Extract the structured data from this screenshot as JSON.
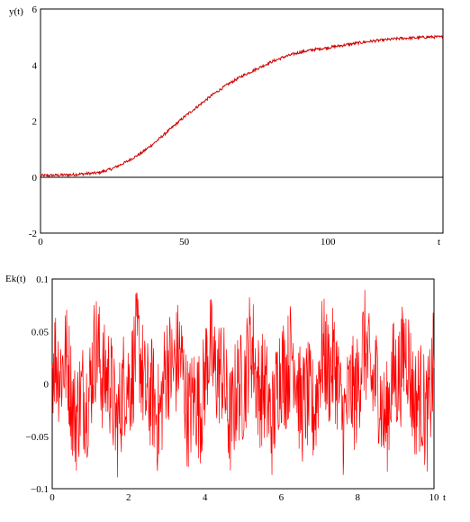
{
  "chart_data": [
    {
      "type": "line",
      "title": "",
      "ylabel": "y(t)",
      "xlabel": "t",
      "xlim": [
        0,
        140
      ],
      "ylim": [
        -2,
        6
      ],
      "xticks": [
        "0",
        "50",
        "100"
      ],
      "yticks": [
        "-2",
        "0",
        "2",
        "4",
        "6"
      ],
      "grid": false,
      "series": [
        {
          "color": "#cc0000",
          "x": [
            0,
            10,
            20,
            25,
            30,
            35,
            40,
            45,
            50,
            55,
            60,
            65,
            70,
            75,
            80,
            85,
            90,
            95,
            100,
            105,
            110,
            115,
            120,
            125,
            130,
            135,
            140
          ],
          "y": [
            0.05,
            0.08,
            0.15,
            0.3,
            0.55,
            0.85,
            1.25,
            1.7,
            2.15,
            2.55,
            2.95,
            3.3,
            3.6,
            3.85,
            4.1,
            4.3,
            4.45,
            4.55,
            4.62,
            4.7,
            4.78,
            4.85,
            4.9,
            4.95,
            4.97,
            5.0,
            5.0
          ],
          "noise": 0.05
        }
      ]
    },
    {
      "type": "line",
      "title": "",
      "ylabel": "Ek(t)",
      "xlabel": "t",
      "xlim": [
        0,
        10
      ],
      "ylim": [
        -0.1,
        0.1
      ],
      "xticks": [
        "0",
        "2",
        "4",
        "6",
        "8",
        "10"
      ],
      "yticks": [
        "0.1",
        "0.05",
        "0",
        "−0.05",
        "−0.1"
      ],
      "grid": false,
      "series": [
        {
          "color": "#ff0000",
          "amplitude": 0.08,
          "samples": 900
        }
      ]
    }
  ]
}
